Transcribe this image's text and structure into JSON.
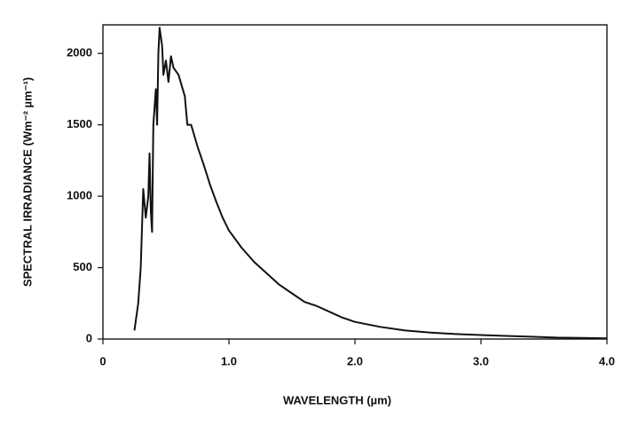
{
  "chart_data": {
    "type": "line",
    "xlabel": "WAVELENGTH (µm)",
    "ylabel": "SPECTRAL IRRADIANCE (Wm⁻² µm⁻¹)",
    "x": [
      0.25,
      0.28,
      0.3,
      0.32,
      0.34,
      0.36,
      0.37,
      0.38,
      0.39,
      0.4,
      0.42,
      0.43,
      0.44,
      0.45,
      0.47,
      0.48,
      0.5,
      0.52,
      0.54,
      0.56,
      0.6,
      0.65,
      0.67,
      0.7,
      0.75,
      0.8,
      0.85,
      0.9,
      0.95,
      1.0,
      1.1,
      1.2,
      1.3,
      1.4,
      1.5,
      1.6,
      1.7,
      1.8,
      1.9,
      2.0,
      2.2,
      2.4,
      2.6,
      2.8,
      3.0,
      3.2,
      3.4,
      3.6,
      3.8,
      4.0
    ],
    "values": [
      60,
      250,
      500,
      1050,
      850,
      1000,
      1300,
      900,
      750,
      1500,
      1750,
      1500,
      2000,
      2180,
      2050,
      1850,
      1950,
      1800,
      1980,
      1900,
      1850,
      1700,
      1500,
      1500,
      1350,
      1220,
      1080,
      960,
      850,
      760,
      640,
      540,
      460,
      380,
      320,
      260,
      230,
      190,
      150,
      120,
      85,
      60,
      45,
      35,
      28,
      22,
      16,
      10,
      8,
      5
    ],
    "color": "#111111",
    "xlim": [
      0,
      4.0
    ],
    "xticks": [
      0,
      {
        "value": 1,
        "label": "1.0"
      },
      {
        "value": 2,
        "label": "2.0"
      },
      {
        "value": 3,
        "label": "3.0"
      },
      {
        "value": 4,
        "label": "4.0"
      }
    ],
    "ylim": [
      0,
      2200
    ],
    "yticks": [
      0,
      500,
      1000,
      1500,
      2000
    ],
    "grid": false
  }
}
